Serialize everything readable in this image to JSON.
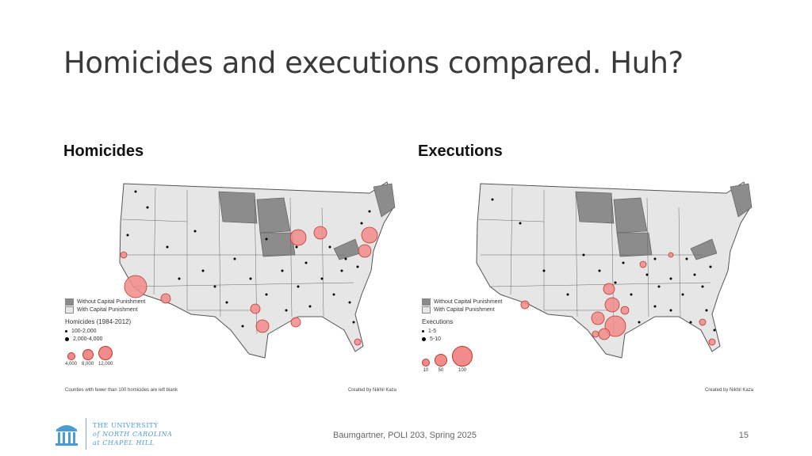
{
  "slide": {
    "title": "Homicides and executions compared. Huh?",
    "footer": "Baumgartner, POLI 203, Spring 2025",
    "page_number": "15"
  },
  "left_panel": {
    "heading": "Homicides",
    "legend_without": "Without Capital Punishment",
    "legend_with": "With Capital Punishment",
    "legend_title": "Homicides (1984-2012)",
    "small_dot_1": "100-2,000",
    "small_dot_2": "2,000-4,000",
    "circle_labels": [
      "4,000",
      "8,000",
      "12,000"
    ],
    "note": "Counties with fewer than 100 homicides are left blank",
    "credit": "Created by Nikhil Kaza"
  },
  "right_panel": {
    "heading": "Executions",
    "legend_without": "Without Capital Punishment",
    "legend_with": "With Capital Punishment",
    "legend_title": "Executions",
    "small_dot_1": "1-5",
    "small_dot_2": "5-10",
    "circle_labels": [
      "10",
      "50",
      "100"
    ],
    "credit": "Created by Nikhil Kaza"
  },
  "logo": {
    "line1": "THE UNIVERSITY",
    "line2": "of NORTH CAROLINA",
    "line3": "at CHAPEL HILL"
  },
  "colors": {
    "state_fill": "#e6e6e6",
    "no_cp_fill": "#8c8c8c",
    "circle_fill": "#f28b8b",
    "circle_stroke": "#c0392b",
    "brand_blue": "#4b9cd3"
  }
}
